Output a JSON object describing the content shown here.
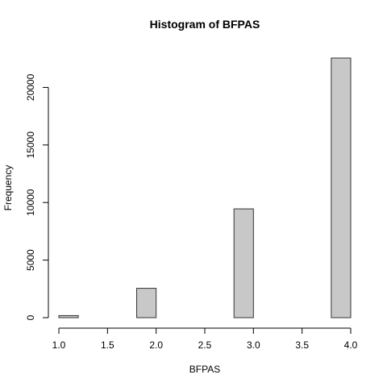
{
  "chart_data": {
    "type": "bar",
    "title": "Histogram of BFPAS",
    "xlabel": "BFPAS",
    "ylabel": "Frequency",
    "bin_edges": [
      1.0,
      1.2,
      1.4,
      1.6,
      1.8,
      2.0,
      2.2,
      2.4,
      2.6,
      2.8,
      3.0,
      3.2,
      3.4,
      3.6,
      3.8,
      4.0
    ],
    "values": [
      180,
      0,
      0,
      0,
      2550,
      0,
      0,
      0,
      0,
      9450,
      0,
      0,
      0,
      0,
      22550
    ],
    "xlim": [
      1.0,
      4.0
    ],
    "ylim": [
      0,
      22550
    ],
    "xticks": [
      1.0,
      1.5,
      2.0,
      2.5,
      3.0,
      3.5,
      4.0
    ],
    "xtick_labels": [
      "1.0",
      "1.5",
      "2.0",
      "2.5",
      "3.0",
      "3.5",
      "4.0"
    ],
    "yticks": [
      0,
      5000,
      10000,
      15000,
      20000
    ],
    "ytick_labels": [
      "0",
      "5000",
      "10000",
      "15000",
      "20000"
    ],
    "bar_color": "#c8c8c8",
    "bar_edge_color": "#333333",
    "grid": false
  }
}
